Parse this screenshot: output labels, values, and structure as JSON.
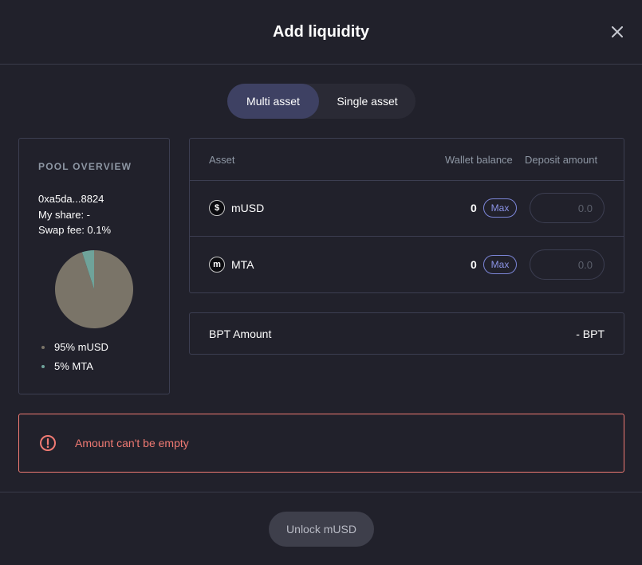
{
  "modal": {
    "title": "Add liquidity"
  },
  "tabs": [
    {
      "label": "Multi asset",
      "active": true
    },
    {
      "label": "Single asset",
      "active": false
    }
  ],
  "pool_overview": {
    "title": "POOL OVERVIEW",
    "address": "0xa5da...8824",
    "my_share": "My share: -",
    "swap_fee": "Swap fee: 0.1%",
    "composition": [
      {
        "label": "95% mUSD",
        "percent": 95,
        "color": "#7a7468"
      },
      {
        "label": "5% MTA",
        "percent": 5,
        "color": "#6fa39a"
      }
    ]
  },
  "asset_table": {
    "headers": {
      "asset": "Asset",
      "wallet_balance": "Wallet balance",
      "deposit_amount": "Deposit amount"
    },
    "rows": [
      {
        "icon": "musd-token-icon",
        "icon_glyph": "$",
        "symbol": "mUSD",
        "balance": "0",
        "max_label": "Max",
        "placeholder": "0.0"
      },
      {
        "icon": "mta-token-icon",
        "icon_glyph": "m",
        "symbol": "MTA",
        "balance": "0",
        "max_label": "Max",
        "placeholder": "0.0"
      }
    ]
  },
  "bpt": {
    "label": "BPT Amount",
    "value": "- BPT"
  },
  "error": {
    "message": "Amount can't be empty",
    "color": "#f07a73"
  },
  "footer": {
    "button_label": "Unlock mUSD"
  },
  "colors": {
    "background": "#21212b",
    "accent": "#7c86d8",
    "tab_active": "#3e4163",
    "border": "#3c3e51"
  }
}
